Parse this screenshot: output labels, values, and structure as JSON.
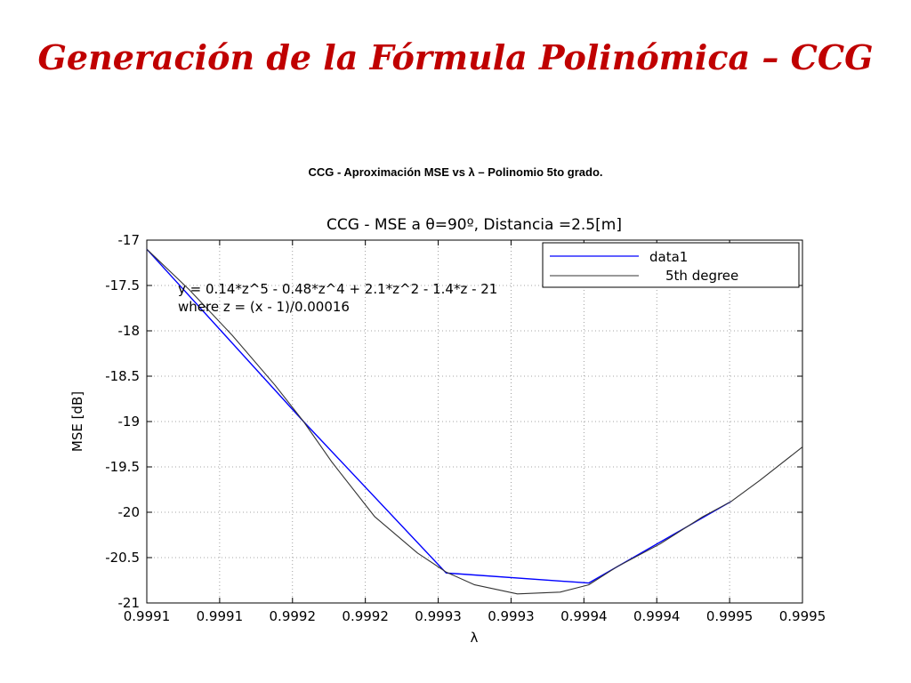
{
  "slide": {
    "title": "Generación de la Fórmula Polinómica – CCG",
    "subtitle": "CCG - Aproximación MSE vs λ – Polinomio 5to grado."
  },
  "chart_data": {
    "type": "line",
    "title": "CCG - MSE a θ=90º, Distancia =2.5[m]",
    "xlabel": "λ",
    "ylabel": "MSE [dB]",
    "xlim": [
      0.99909,
      0.99955
    ],
    "ylim": [
      -21,
      -17
    ],
    "x_tick_labels": [
      "0.9991",
      "0.9991",
      "0.9992",
      "0.9992",
      "0.9993",
      "0.9993",
      "0.9994",
      "0.9994",
      "0.9995",
      "0.9995"
    ],
    "y_ticks": [
      -17,
      -17.5,
      -18,
      -18.5,
      -19,
      -19.5,
      -20,
      -20.5,
      -21
    ],
    "grid": true,
    "legend_position": "top-right",
    "series": [
      {
        "name": "data1",
        "color": "#0000ff",
        "x": [
          0.99909,
          0.9992,
          0.9993,
          0.9994,
          0.9995
        ],
        "y": [
          -17.1,
          -19.0,
          -20.67,
          -20.78,
          -19.88
        ]
      },
      {
        "name": "5th degree",
        "color": "#333333",
        "x": [
          0.99909,
          0.99912,
          0.99915,
          0.99918,
          0.9992,
          0.99922,
          0.99925,
          0.99928,
          0.9993,
          0.99932,
          0.99935,
          0.99938,
          0.9994,
          0.99942,
          0.99945,
          0.99948,
          0.9995,
          0.99952,
          0.99955
        ],
        "y": [
          -17.1,
          -17.55,
          -18.05,
          -18.6,
          -19.0,
          -19.45,
          -20.05,
          -20.45,
          -20.66,
          -20.8,
          -20.9,
          -20.88,
          -20.8,
          -20.6,
          -20.35,
          -20.05,
          -19.88,
          -19.65,
          -19.28
        ]
      }
    ],
    "annotations": [
      "y = 0.14*z^5 - 0.48*z^4 + 2.1*z^2 - 1.4*z - 21",
      "where z = (x - 1)/0.00016"
    ]
  }
}
